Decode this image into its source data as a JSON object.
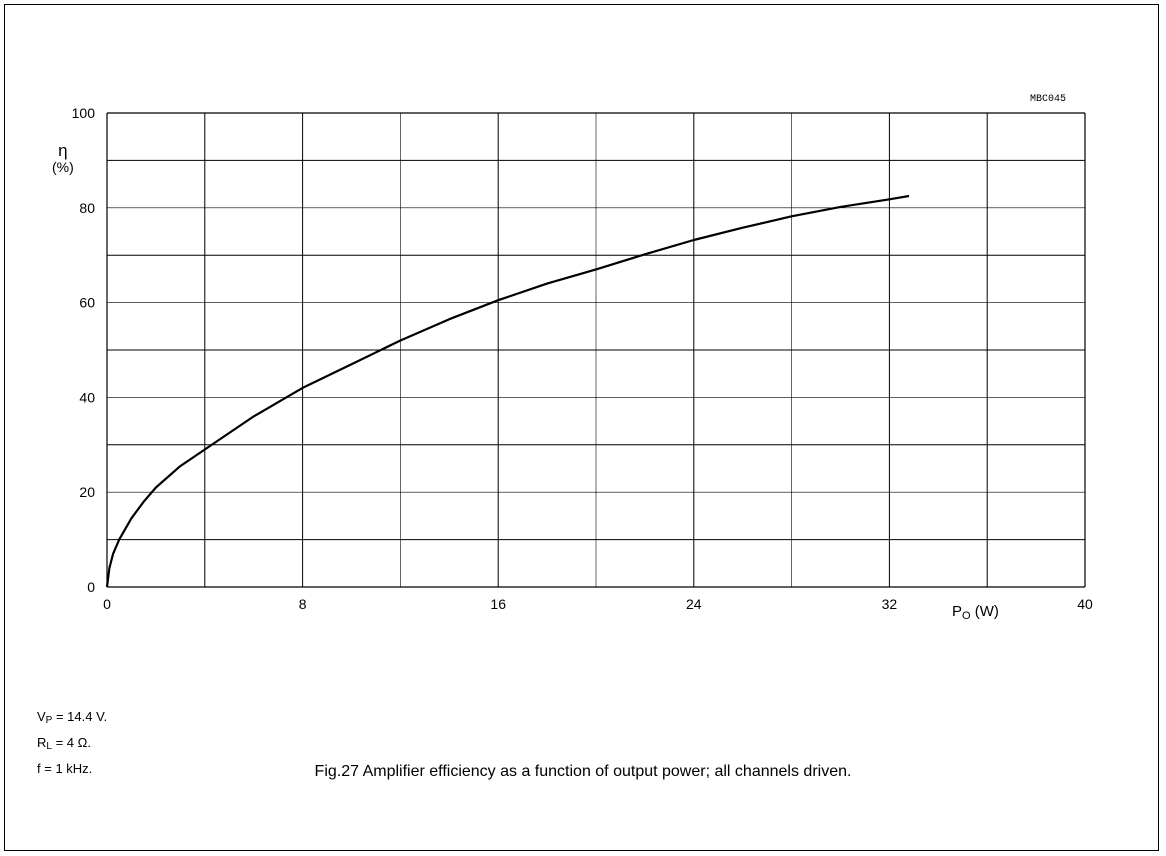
{
  "figure_code": "MBC045",
  "caption": "Fig.27  Amplifier efficiency as a function of output power; all channels driven.",
  "conditions": [
    {
      "sym": "V",
      "sub": "P",
      "rest": " = 14.4 V."
    },
    {
      "sym": "R",
      "sub": "L",
      "rest": " = 4 Ω."
    },
    {
      "sym": "f",
      "sub": "",
      "rest": " = 1 kHz."
    }
  ],
  "chart_data": {
    "type": "line",
    "title": "",
    "xlabel": {
      "sym": "P",
      "sub": "O",
      "unit": " (W)"
    },
    "ylabel": {
      "sym": "η",
      "unit": "(%)"
    },
    "xlim": [
      0,
      40
    ],
    "ylim": [
      0,
      100
    ],
    "x_ticks": [
      "0",
      "8",
      "16",
      "24",
      "32",
      "40"
    ],
    "y_ticks": [
      "0",
      "20",
      "40",
      "60",
      "80",
      "100"
    ],
    "grid": true,
    "series": [
      {
        "points": [
          [
            0,
            0
          ],
          [
            0.1,
            4
          ],
          [
            0.25,
            7
          ],
          [
            0.5,
            10
          ],
          [
            1,
            14.5
          ],
          [
            1.5,
            18
          ],
          [
            2,
            21
          ],
          [
            3,
            25.5
          ],
          [
            4,
            29
          ],
          [
            6,
            36
          ],
          [
            8,
            42
          ],
          [
            10,
            47
          ],
          [
            12,
            52
          ],
          [
            14,
            56.5
          ],
          [
            16,
            60.5
          ],
          [
            18,
            64
          ],
          [
            20,
            67
          ],
          [
            22,
            70.2
          ],
          [
            24,
            73.2
          ],
          [
            26,
            75.8
          ],
          [
            28,
            78.2
          ],
          [
            30,
            80.2
          ],
          [
            32,
            81.8
          ],
          [
            32.8,
            82.5
          ]
        ]
      }
    ]
  }
}
